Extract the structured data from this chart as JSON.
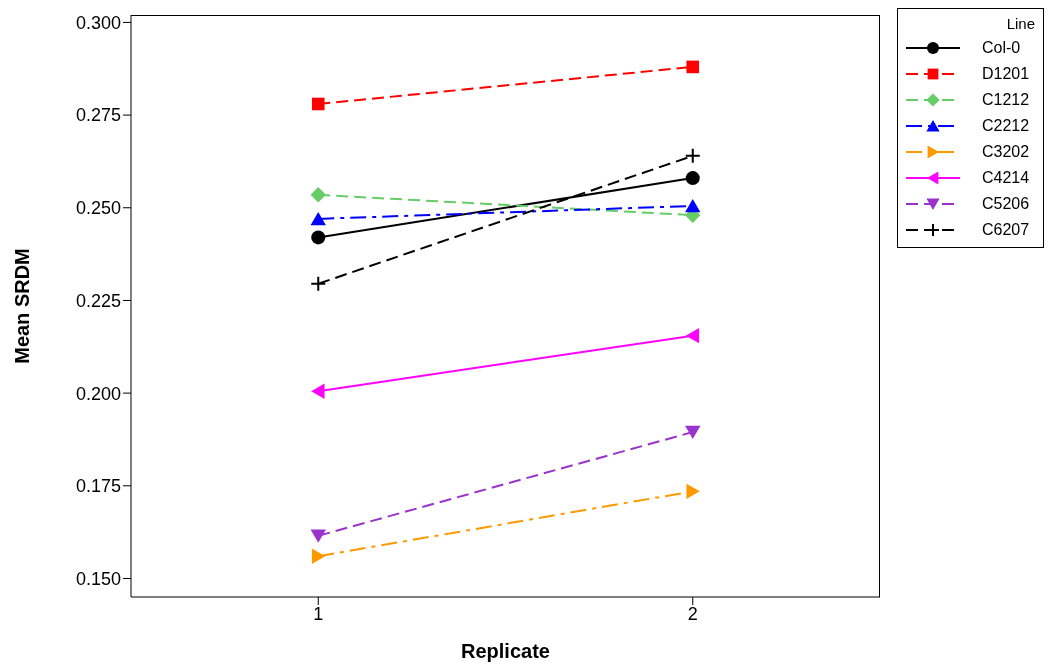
{
  "chart_data": {
    "type": "line",
    "xlabel": "Replicate",
    "ylabel": "Mean SRDM",
    "legend_title": "Line",
    "legend": "right",
    "grid": false,
    "x": [
      1,
      2
    ],
    "xlim": [
      0.5,
      2.5
    ],
    "xticks": [
      1,
      2
    ],
    "ylim": [
      0.145,
      0.302
    ],
    "yticks": [
      {
        "value": 0.15,
        "label": "0.150"
      },
      {
        "value": 0.175,
        "label": "0.175"
      },
      {
        "value": 0.2,
        "label": "0.200"
      },
      {
        "value": 0.225,
        "label": "0.225"
      },
      {
        "value": 0.25,
        "label": "0.250"
      },
      {
        "value": 0.275,
        "label": "0.275"
      },
      {
        "value": 0.3,
        "label": "0.300"
      }
    ],
    "series": [
      {
        "name": "Col-0",
        "color": "#000000",
        "values": [
          0.242,
          0.258
        ],
        "marker": "circle",
        "line_style": "solid"
      },
      {
        "name": "D1201",
        "color": "#ff0000",
        "values": [
          0.278,
          0.288
        ],
        "marker": "square",
        "line_style": "dashed"
      },
      {
        "name": "C1212",
        "color": "#66cc66",
        "values": [
          0.2535,
          0.248
        ],
        "marker": "diamond",
        "line_style": "dashed"
      },
      {
        "name": "C2212",
        "color": "#0000ff",
        "values": [
          0.247,
          0.2505
        ],
        "marker": "triangle",
        "line_style": "dashdot"
      },
      {
        "name": "C3202",
        "color": "#ff9900",
        "values": [
          0.156,
          0.1735
        ],
        "marker": "triangle-right",
        "line_style": "dashdot"
      },
      {
        "name": "C4214",
        "color": "#ff00ff",
        "values": [
          0.2005,
          0.2155
        ],
        "marker": "triangle-left",
        "line_style": "solid"
      },
      {
        "name": "C5206",
        "color": "#9933cc",
        "values": [
          0.1615,
          0.1895
        ],
        "marker": "triangle-down",
        "line_style": "dashed"
      },
      {
        "name": "C6207",
        "color": "#000000",
        "values": [
          0.2295,
          0.264
        ],
        "marker": "cross",
        "line_style": "dashed"
      }
    ]
  }
}
